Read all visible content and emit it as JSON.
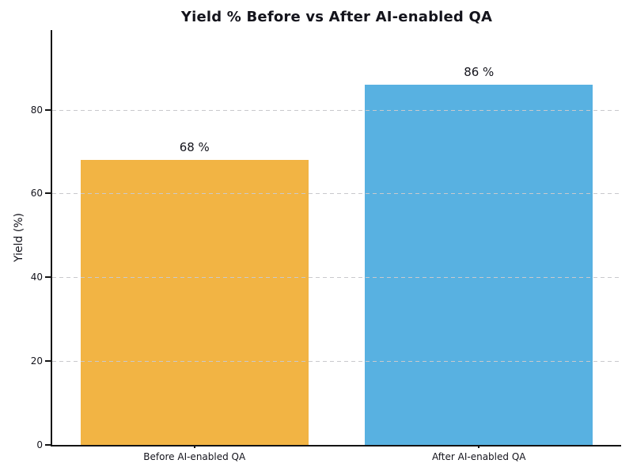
{
  "chart_data": {
    "type": "bar",
    "title": "Yield % Before vs After AI-enabled QA",
    "xlabel": "",
    "ylabel": "Yield (%)",
    "categories": [
      "Before AI-enabled QA",
      "After AI-enabled QA"
    ],
    "values": [
      68,
      86
    ],
    "value_labels": [
      "68 %",
      "86 %"
    ],
    "bar_colors": [
      "#F2B444",
      "#58B1E1"
    ],
    "ylim": [
      0,
      99
    ],
    "yticks": [
      0,
      20,
      40,
      60,
      80
    ],
    "xlim": [
      -0.5,
      1.5
    ],
    "bar_width": 0.8,
    "grid": {
      "axis": "y",
      "style": "dashed",
      "color": "#c9c9cd",
      "on_top_of_bars": true
    },
    "legend": "none",
    "background": "#ffffff",
    "text_color": "#14141c",
    "axis_color": "#141414"
  }
}
